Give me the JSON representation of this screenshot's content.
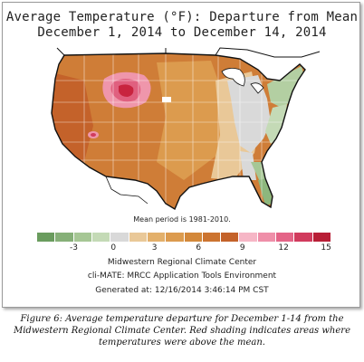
{
  "map": {
    "title_line1": "Average Temperature (°F): Departure from Mean",
    "title_line2": "December 1, 2014 to December 14, 2014",
    "mean_period": "Mean period is 1981-2010.",
    "legend": {
      "tick_labels": [
        "-3",
        "0",
        "3",
        "6",
        "9",
        "12",
        "15"
      ],
      "colors": [
        "#6a9c5e",
        "#86b078",
        "#a6c795",
        "#c4dab6",
        "#d9d9d9",
        "#e9c898",
        "#e3b06b",
        "#dc9b4e",
        "#d3883a",
        "#cc7430",
        "#c4622a",
        "#f6b6c6",
        "#ef8fa9",
        "#e46487",
        "#d13b5d",
        "#b81e36"
      ]
    },
    "credits": {
      "line1": "Midwestern Regional Climate Center",
      "line2": "cli-MATE: MRCC Application Tools Environment",
      "line3": "Generated at: 12/16/2014 3:46:14 PM CST"
    },
    "region_colors": {
      "base_orange": "#cf7d37",
      "light_orange": "#e0a35e",
      "tan": "#ebc48e",
      "gray": "#d9d9d9",
      "green": "#8db77d",
      "light_green": "#b3cfa2",
      "pink": "#ef96ab",
      "hot_pink": "#e0607f",
      "red": "#c8243f"
    }
  },
  "caption": {
    "text": "Figure 6:  Average temperature departure for December 1-14 from the Midwestern Regional Climate Center.  Red shading indicates areas where temperatures were above the mean."
  }
}
